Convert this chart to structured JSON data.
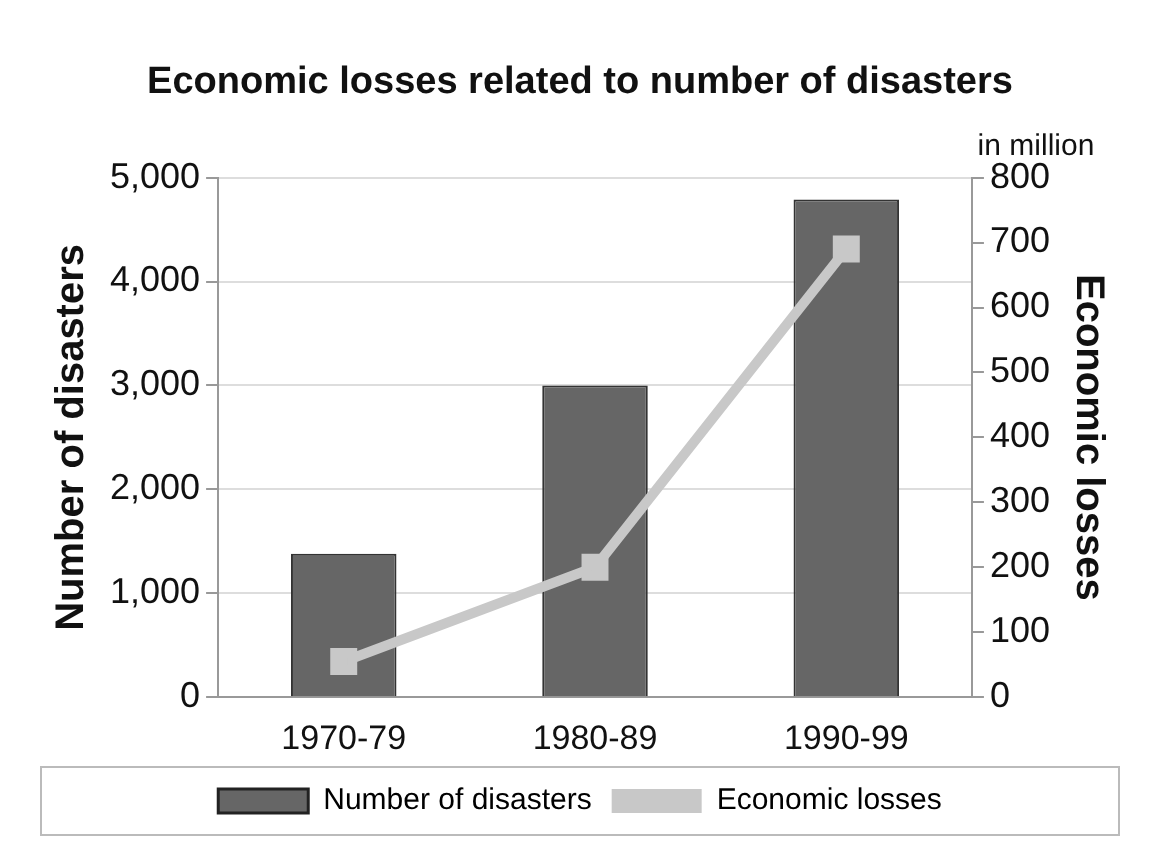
{
  "chart_data": {
    "type": "bar",
    "title": "Economic losses related to number of disasters",
    "categories": [
      "1970-79",
      "1980-89",
      "1990-99"
    ],
    "series": [
      {
        "name": "Number of disasters",
        "color": "#666666",
        "values": [
          1380,
          3000,
          4790
        ]
      },
      {
        "name": "Economic losses",
        "type": "line",
        "axis": "y2",
        "color": "#c8c8c8",
        "marker": "square",
        "values": [
          55,
          200,
          690
        ]
      }
    ],
    "ylabel": "Number of disasters",
    "y2label": "Economic losses",
    "ylim": [
      0,
      5000
    ],
    "yticks": [
      0,
      {
        "value": 1000,
        "label": "1,000"
      },
      {
        "value": 2000,
        "label": "2,000"
      },
      {
        "value": 3000,
        "label": "3,000"
      },
      {
        "value": 4000,
        "label": "4,000"
      },
      {
        "value": 5000,
        "label": "5,000"
      }
    ],
    "y2lim": [
      0,
      800
    ],
    "y2ticks": [
      0,
      100,
      200,
      300,
      400,
      500,
      600,
      700,
      800
    ],
    "annotations": [
      "in million"
    ],
    "grid": "y",
    "legend": "bottom"
  }
}
